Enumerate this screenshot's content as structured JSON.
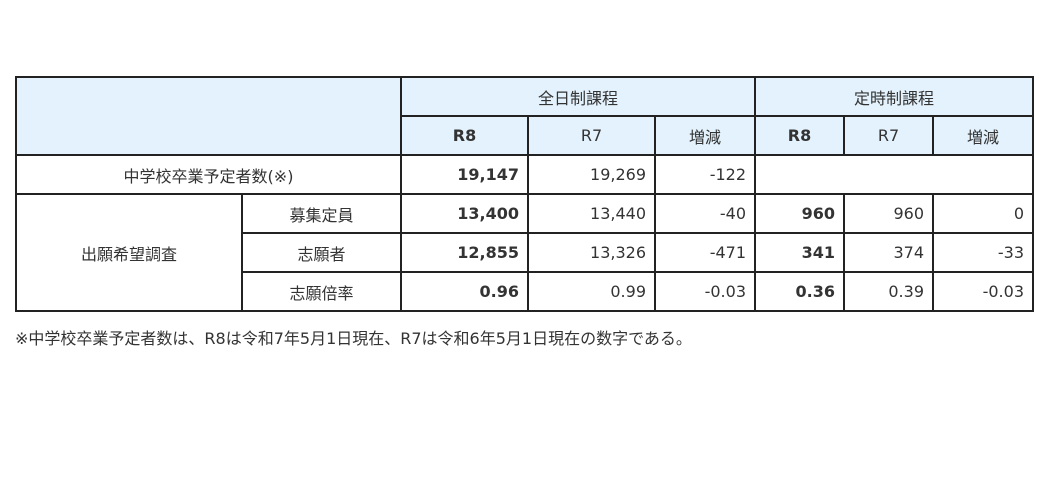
{
  "header": {
    "group_fulltime": "全日制課程",
    "group_parttime": "定時制課程",
    "cols": [
      "R8",
      "R7",
      "増減"
    ]
  },
  "rows": {
    "graduates": {
      "label": "中学校卒業予定者数(※)",
      "fulltime": [
        "19,147",
        "19,269",
        "-122"
      ]
    },
    "survey_label": "出願希望調査",
    "capacity": {
      "label": "募集定員",
      "fulltime": [
        "13,400",
        "13,440",
        "-40"
      ],
      "parttime": [
        "960",
        "960",
        "0"
      ]
    },
    "applicants": {
      "label": "志願者",
      "fulltime": [
        "12,855",
        "13,326",
        "-471"
      ],
      "parttime": [
        "341",
        "374",
        "-33"
      ]
    },
    "ratio": {
      "label": "志願倍率",
      "fulltime": [
        "0.96",
        "0.99",
        "-0.03"
      ],
      "parttime": [
        "0.36",
        "0.39",
        "-0.03"
      ]
    }
  },
  "note": "※中学校卒業予定者数は、R8は令和7年5月1日現在、R7は令和6年5月1日現在の数字である。",
  "colors": {
    "header_bg": "#e3f2fc",
    "border": "#222222"
  }
}
